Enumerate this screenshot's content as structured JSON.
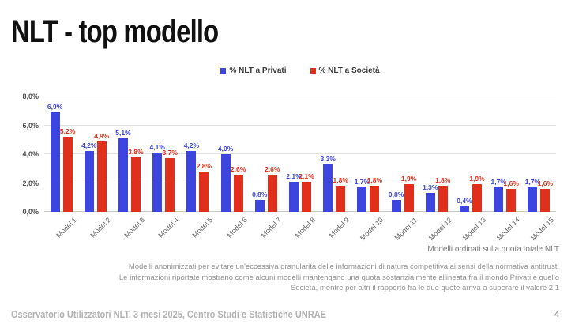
{
  "slide": {
    "title": "NLT - top modello",
    "footer": "Osservatorio Utilizzatori NLT, 3 mesi 2025, Centro Studi e Statistiche UNRAE",
    "page_number": "4"
  },
  "chart_data": {
    "type": "bar",
    "title": "",
    "categories": [
      "Model 1",
      "Model 2",
      "Model 3",
      "Model 4",
      "Model 5",
      "Model 6",
      "Model 7",
      "Model 8",
      "Model 9",
      "Model 10",
      "Model 11",
      "Model 12",
      "Model 13",
      "Model 14",
      "Model 15"
    ],
    "series": [
      {
        "name": "% NLT a Privati",
        "color": "#3D45DF",
        "values": [
          6.9,
          4.2,
          5.1,
          4.1,
          4.2,
          4.0,
          0.8,
          2.1,
          3.3,
          1.7,
          0.8,
          1.3,
          0.4,
          1.7,
          1.7
        ]
      },
      {
        "name": "% NLT a Società",
        "color": "#E0301C",
        "values": [
          5.2,
          4.9,
          3.8,
          3.7,
          2.8,
          2.6,
          2.6,
          2.1,
          1.8,
          1.8,
          1.9,
          1.8,
          1.9,
          1.6,
          1.6
        ]
      }
    ],
    "ylim": [
      0,
      8
    ],
    "yticks": [
      0,
      2,
      4,
      6,
      8
    ],
    "ytick_labels": [
      "0,0%",
      "2,0%",
      "4,0%",
      "6,0%",
      "8,0%"
    ],
    "grid": true,
    "legend_position": "top",
    "data_labels": true,
    "axis_note": "Modelli ordinati sulla quota totale NLT"
  },
  "footnote": {
    "text": "Modelli anonimizzati per evitare un'eccessiva granularità delle informazioni di natura competitiva ai sensi della normativa antitrust. Le informazioni riportate mostrano come alcuni modelli mantengano una quota sostanzialmente allineata fra il mondo Privati e quello Società, mentre per altri il rapporto fra le due quote arriva a superare il valore 2:1"
  }
}
